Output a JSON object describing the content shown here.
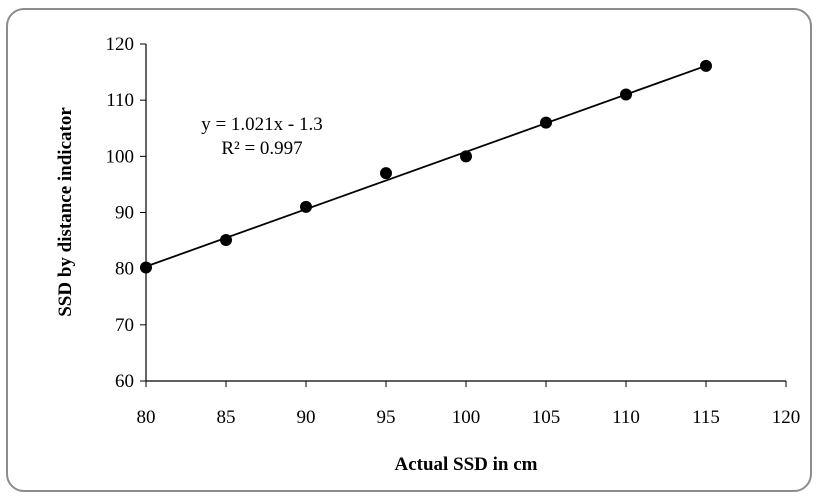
{
  "chart_data": {
    "type": "scatter",
    "title": "",
    "xlabel": "Actual SSD in cm",
    "ylabel": "SSD by distance indicator",
    "xlim": [
      80,
      120
    ],
    "ylim": [
      60,
      120
    ],
    "xticks": [
      80,
      85,
      90,
      95,
      100,
      105,
      110,
      115,
      120
    ],
    "yticks": [
      60,
      70,
      80,
      90,
      100,
      110,
      120
    ],
    "grid": false,
    "series": [
      {
        "x": [
          80,
          85,
          90,
          95,
          100,
          105,
          110,
          115
        ],
        "y": [
          80.2,
          85.1,
          91,
          97,
          100,
          106,
          111,
          116.1
        ],
        "marker_color": "#000000"
      }
    ],
    "trendline": {
      "type": "linear",
      "slope": 1.021,
      "intercept": -1.3,
      "x_range": [
        80,
        115
      ],
      "color": "#000000"
    },
    "annotations": [
      "y = 1.021x - 1.3",
      "R² = 0.997"
    ]
  }
}
